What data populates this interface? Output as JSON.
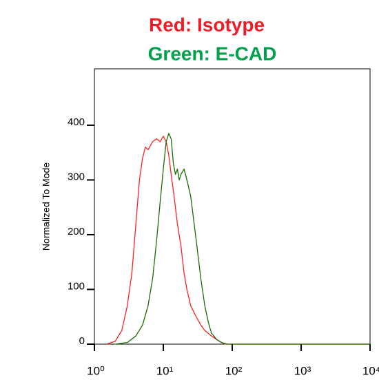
{
  "chart_data": {
    "type": "line",
    "title": "Red: Isotype",
    "title_color": "#ee1c25",
    "subtitle": "Green: E-CAD",
    "subtitle_color": "#00a14b",
    "y_label": "Normalized To Mode",
    "x_scale": "log",
    "xlim": [
      1,
      10000
    ],
    "xticks": [
      {
        "value": 1,
        "label": "10⁰"
      },
      {
        "value": 10,
        "label": "10¹"
      },
      {
        "value": 100,
        "label": "10²"
      },
      {
        "value": 1000,
        "label": "10³"
      },
      {
        "value": 10000,
        "label": "10⁴"
      }
    ],
    "ylim": [
      0,
      503
    ],
    "yticks": [
      0,
      100,
      200,
      300,
      400
    ],
    "series": [
      {
        "color": "#ff2020",
        "x": [
          1.5,
          2,
          2.5,
          3,
          3.5,
          4,
          4.5,
          5,
          5.5,
          6,
          7,
          8,
          9,
          10,
          11,
          12,
          13,
          14,
          15,
          16,
          18,
          20,
          22,
          25,
          30,
          35,
          40,
          50,
          60,
          70,
          80,
          100,
          10000
        ],
        "values": [
          0,
          5,
          25,
          70,
          130,
          220,
          300,
          340,
          360,
          355,
          370,
          375,
          370,
          380,
          370,
          345,
          310,
          280,
          250,
          220,
          180,
          130,
          100,
          70,
          50,
          35,
          25,
          15,
          8,
          3,
          0,
          0,
          0
        ]
      },
      {
        "color": "#1a6b00",
        "x": [
          2,
          3,
          4,
          5,
          6,
          7,
          8,
          9,
          10,
          11,
          12,
          13,
          14,
          15,
          16,
          17,
          18,
          20,
          22,
          25,
          28,
          30,
          35,
          40,
          45,
          50,
          60,
          70,
          85,
          10000
        ],
        "values": [
          0,
          3,
          15,
          35,
          70,
          120,
          190,
          260,
          320,
          370,
          385,
          375,
          330,
          310,
          320,
          300,
          310,
          320,
          300,
          270,
          220,
          190,
          120,
          70,
          40,
          20,
          8,
          3,
          0,
          0
        ]
      }
    ]
  }
}
